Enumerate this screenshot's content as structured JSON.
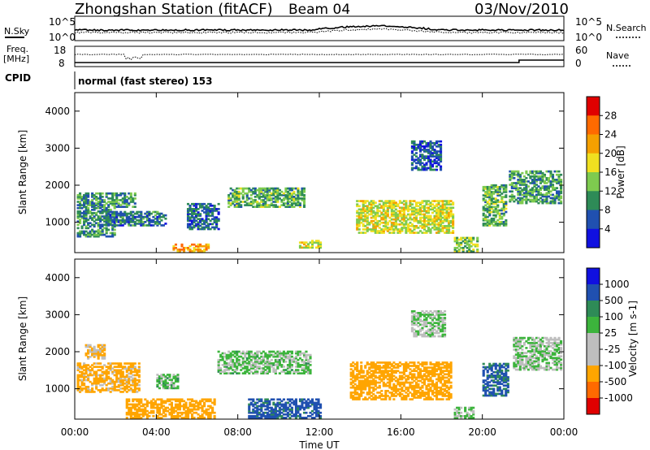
{
  "header": {
    "station": "Zhongshan Station (fitACF)",
    "beam": "Beam 04",
    "date": "03/Nov/2010"
  },
  "noise_panel": {
    "left_label": "N.Sky",
    "right_label": "N.Search",
    "ticks_left": [
      "10^5",
      "10^0"
    ],
    "ticks_right": [
      "10^5",
      "10^0"
    ]
  },
  "freq_panel": {
    "left_label_1": "Freq.",
    "left_label_2": "[MHz]",
    "right_label": "Nave",
    "ticks_left": [
      "18",
      "8"
    ],
    "ticks_right": [
      "60",
      "0"
    ]
  },
  "cpid": {
    "label": "CPID",
    "value": "normal (fast stereo) 153"
  },
  "x_axis": {
    "label": "Time UT",
    "ticks": [
      "00:00",
      "04:00",
      "08:00",
      "12:00",
      "16:00",
      "20:00",
      "00:00"
    ]
  },
  "colors": {
    "power_scale": [
      "#1010e0",
      "#2050b0",
      "#2e8b57",
      "#7ecb4f",
      "#f0e020",
      "#f5a000",
      "#ff6a00",
      "#e00000"
    ],
    "velocity_scale": [
      "#e00000",
      "#ff6a00",
      "#ffa500",
      "#bebebe",
      "#bebebe",
      "#3cb43c",
      "#2e8b57",
      "#2050b0",
      "#1010e0"
    ]
  },
  "chart_data": [
    {
      "type": "heatmap",
      "title": "Power",
      "xlabel": "Time UT",
      "ylabel": "Slant Range [km]",
      "xlim": [
        "00:00",
        "24:00"
      ],
      "ylim": [
        180,
        4500
      ],
      "yticks": [
        "1000",
        "2000",
        "3000",
        "4000"
      ],
      "colorbar_label": "Power [dB]",
      "colorbar_ticks": [
        "4",
        "8",
        "12",
        "16",
        "20",
        "24",
        "28"
      ],
      "colorbar_range": [
        0,
        32
      ],
      "regions": [
        {
          "t0": 0.1,
          "t1": 3.0,
          "r0": 1400,
          "r1": 1800,
          "value": 10
        },
        {
          "t0": 0.1,
          "t1": 2.0,
          "r0": 600,
          "r1": 1400,
          "value": 9
        },
        {
          "t0": 1.5,
          "t1": 4.5,
          "r0": 900,
          "r1": 1300,
          "value": 8
        },
        {
          "t0": 4.8,
          "t1": 6.5,
          "r0": 200,
          "r1": 400,
          "value": 22
        },
        {
          "t0": 5.5,
          "t1": 7.0,
          "r0": 800,
          "r1": 1500,
          "value": 7
        },
        {
          "t0": 7.5,
          "t1": 11.2,
          "r0": 1400,
          "r1": 1900,
          "value": 12
        },
        {
          "t0": 11.0,
          "t1": 12.0,
          "r0": 300,
          "r1": 500,
          "value": 18
        },
        {
          "t0": 13.8,
          "t1": 18.6,
          "r0": 700,
          "r1": 1600,
          "value": 17
        },
        {
          "t0": 16.5,
          "t1": 18.0,
          "r0": 2400,
          "r1": 3200,
          "value": 6
        },
        {
          "t0": 18.6,
          "t1": 19.8,
          "r0": 200,
          "r1": 600,
          "value": 14
        },
        {
          "t0": 20.0,
          "t1": 21.2,
          "r0": 900,
          "r1": 2000,
          "value": 12
        },
        {
          "t0": 21.3,
          "t1": 23.9,
          "r0": 1500,
          "r1": 2400,
          "value": 11
        }
      ]
    },
    {
      "type": "heatmap",
      "title": "Velocity",
      "xlabel": "Time UT",
      "ylabel": "Slant Range [km]",
      "xlim": [
        "00:00",
        "24:00"
      ],
      "ylim": [
        180,
        4500
      ],
      "yticks": [
        "1000",
        "2000",
        "3000",
        "4000"
      ],
      "colorbar_label": "Velocity [m s-1]",
      "colorbar_ticks": [
        "-1000",
        "-500",
        "-100",
        "-25",
        "25",
        "100",
        "500",
        "1000"
      ],
      "regions": [
        {
          "t0": 0.1,
          "t1": 3.2,
          "r0": 900,
          "r1": 1700,
          "value": -150
        },
        {
          "t0": 0.5,
          "t1": 1.5,
          "r0": 1800,
          "r1": 2200,
          "value": -120
        },
        {
          "t0": 2.5,
          "t1": 6.8,
          "r0": 200,
          "r1": 700,
          "value": -200
        },
        {
          "t0": 4.0,
          "t1": 5.0,
          "r0": 1000,
          "r1": 1400,
          "value": 10
        },
        {
          "t0": 7.0,
          "t1": 11.5,
          "r0": 1400,
          "r1": 2000,
          "value": 5
        },
        {
          "t0": 8.5,
          "t1": 12.0,
          "r0": 200,
          "r1": 700,
          "value": 150
        },
        {
          "t0": 13.5,
          "t1": 18.5,
          "r0": 700,
          "r1": 1700,
          "value": -200
        },
        {
          "t0": 16.5,
          "t1": 18.2,
          "r0": 2400,
          "r1": 3100,
          "value": 0
        },
        {
          "t0": 18.6,
          "t1": 19.6,
          "r0": 200,
          "r1": 500,
          "value": 0
        },
        {
          "t0": 20.0,
          "t1": 21.3,
          "r0": 800,
          "r1": 1700,
          "value": 120
        },
        {
          "t0": 21.5,
          "t1": 23.9,
          "r0": 1500,
          "r1": 2400,
          "value": 0
        }
      ]
    }
  ]
}
